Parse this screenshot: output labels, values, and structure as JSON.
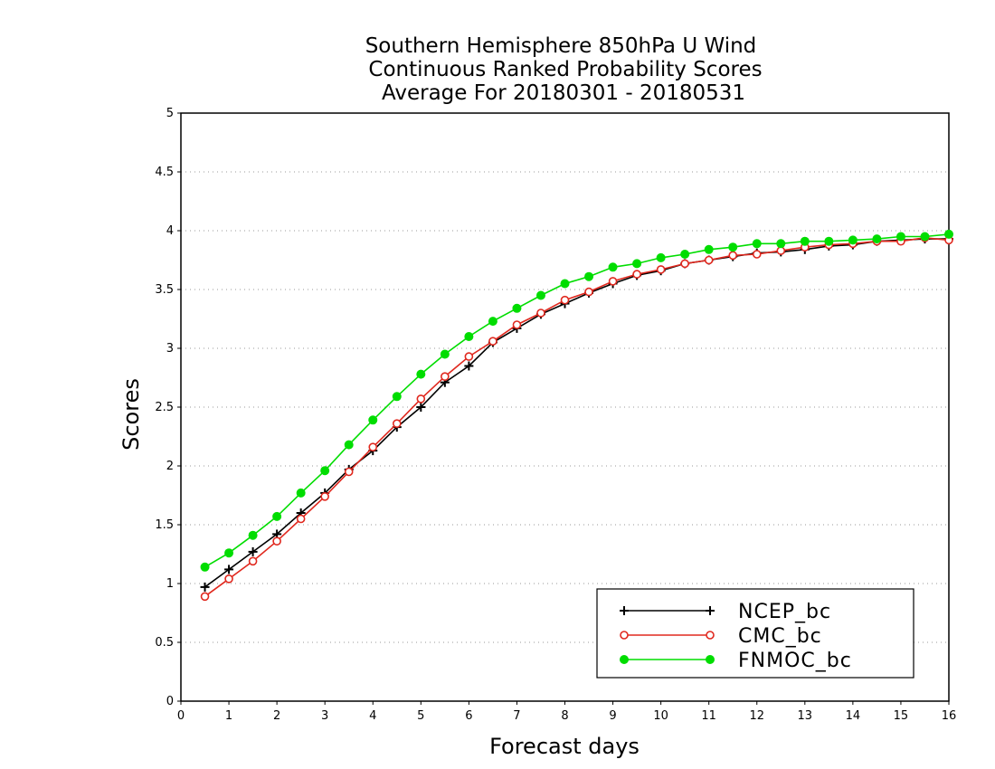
{
  "chart_data": {
    "type": "line",
    "title": [
      "Southern Hemisphere 850hPa U Wind",
      "Continuous Ranked Probability Scores",
      "Average For 20180301 - 20180531"
    ],
    "xlabel": "Forecast days",
    "ylabel": "Scores",
    "xlim": [
      0,
      16
    ],
    "ylim": [
      0,
      5
    ],
    "xticks": [
      "0",
      "1",
      "2",
      "3",
      "4",
      "5",
      "6",
      "7",
      "8",
      "9",
      "10",
      "11",
      "12",
      "13",
      "14",
      "15",
      "16"
    ],
    "yticks": [
      "0",
      "0.5",
      "1",
      "1.5",
      "2",
      "2.5",
      "3",
      "3.5",
      "4",
      "4.5",
      "5"
    ],
    "grid": true,
    "legend_position": "bottom-right",
    "x": [
      0.5,
      1,
      1.5,
      2,
      2.5,
      3,
      3.5,
      4,
      4.5,
      5,
      5.5,
      6,
      6.5,
      7,
      7.5,
      8,
      8.5,
      9,
      9.5,
      10,
      10.5,
      11,
      11.5,
      12,
      12.5,
      13,
      13.5,
      14,
      14.5,
      15,
      15.5,
      16
    ],
    "series": [
      {
        "name": "NCEP_bc",
        "color": "#000000",
        "marker": "plus",
        "values": [
          0.97,
          1.12,
          1.27,
          1.42,
          1.6,
          1.77,
          1.97,
          2.13,
          2.33,
          2.5,
          2.71,
          2.85,
          3.05,
          3.17,
          3.29,
          3.38,
          3.47,
          3.55,
          3.62,
          3.66,
          3.72,
          3.75,
          3.78,
          3.81,
          3.82,
          3.84,
          3.87,
          3.88,
          3.91,
          3.92,
          3.93,
          3.93
        ]
      },
      {
        "name": "CMC_bc",
        "color": "#e0281e",
        "marker": "open-circle",
        "values": [
          0.89,
          1.04,
          1.19,
          1.36,
          1.55,
          1.74,
          1.95,
          2.16,
          2.36,
          2.57,
          2.76,
          2.93,
          3.06,
          3.2,
          3.3,
          3.41,
          3.48,
          3.57,
          3.63,
          3.67,
          3.72,
          3.75,
          3.79,
          3.8,
          3.83,
          3.86,
          3.88,
          3.89,
          3.91,
          3.91,
          3.94,
          3.92
        ]
      },
      {
        "name": "FNMOC_bc",
        "color": "#00dd00",
        "marker": "filled-circle",
        "values": [
          1.14,
          1.26,
          1.41,
          1.57,
          1.77,
          1.96,
          2.18,
          2.39,
          2.59,
          2.78,
          2.95,
          3.1,
          3.23,
          3.34,
          3.45,
          3.55,
          3.61,
          3.69,
          3.72,
          3.77,
          3.8,
          3.84,
          3.86,
          3.89,
          3.89,
          3.91,
          3.91,
          3.92,
          3.93,
          3.95,
          3.95,
          3.97
        ]
      }
    ]
  }
}
